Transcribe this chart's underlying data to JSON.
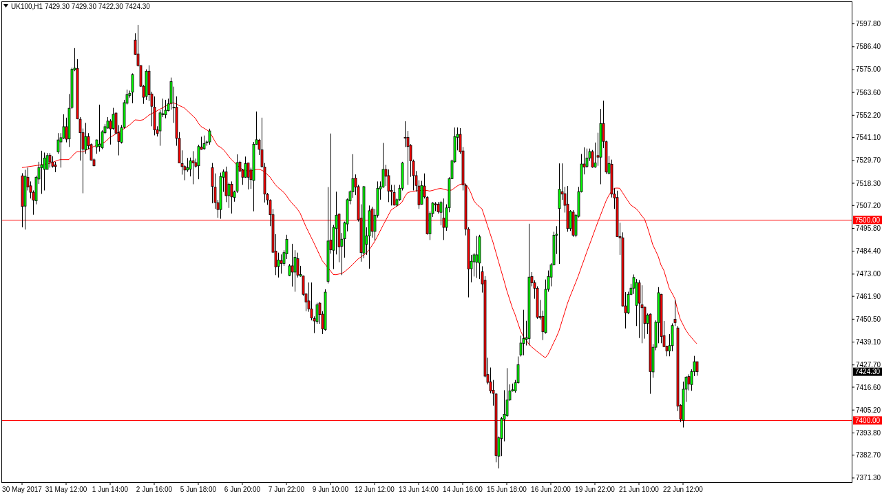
{
  "chart_data": {
    "type": "candlestick",
    "title": "UK100,H1  7429.30 7429.30 7422.30 7424.30",
    "categories": [
      "30 May 2017",
      null,
      null,
      null,
      null,
      null,
      null,
      null,
      null,
      null,
      null,
      null,
      null,
      null,
      null,
      null,
      "31 May 12:00",
      null,
      null,
      null,
      null,
      null,
      null,
      null,
      null,
      null,
      null,
      null,
      null,
      null,
      null,
      null,
      "1 Jun 14:00",
      null,
      null,
      null,
      null,
      null,
      null,
      null,
      null,
      null,
      null,
      null,
      null,
      null,
      null,
      null,
      "2 Jun 16:00",
      null,
      null,
      null,
      null,
      null,
      null,
      null,
      null,
      null,
      null,
      null,
      null,
      null,
      null,
      null,
      "5 Jun 18:00",
      null,
      null,
      null,
      null,
      null,
      null,
      null,
      null,
      null,
      null,
      null,
      null,
      null,
      null,
      null,
      "6 Jun 20:00",
      null,
      null,
      null,
      null,
      null,
      null,
      null,
      null,
      null,
      null,
      null,
      null,
      null,
      null,
      null,
      "7 Jun 22:00",
      null,
      null,
      null,
      null,
      null,
      null,
      null,
      null,
      null,
      null,
      null,
      null,
      null,
      null,
      null,
      "9 Jun 10:00",
      null,
      null,
      null,
      null,
      null,
      null,
      null,
      null,
      null,
      null,
      null,
      null,
      null,
      null,
      null,
      "12 Jun 12:00",
      null,
      null,
      null,
      null,
      null,
      null,
      null,
      null,
      null,
      null,
      null,
      null,
      null,
      null,
      null,
      "13 Jun 14:00",
      null,
      null,
      null,
      null,
      null,
      null,
      null,
      null,
      null,
      null,
      null,
      null,
      null,
      null,
      null,
      "14 Jun 16:00",
      null,
      null,
      null,
      null,
      null,
      null,
      null,
      null,
      null,
      null,
      null,
      null,
      null,
      null,
      null,
      "15 Jun 18:00",
      null,
      null,
      null,
      null,
      null,
      null,
      null,
      null,
      null,
      null,
      null,
      null,
      null,
      null,
      null,
      "16 Jun 20:00",
      null,
      null,
      null,
      null,
      null,
      null,
      null,
      null,
      null,
      null,
      null,
      null,
      null,
      null,
      null,
      "19 Jun 22:00",
      null,
      null,
      null,
      null,
      null,
      null,
      null,
      null,
      null,
      null,
      null,
      null,
      null,
      null,
      null,
      "21 Jun 10:00",
      null,
      null,
      null,
      null,
      null,
      null,
      null,
      null,
      null,
      null,
      null,
      null,
      null,
      null,
      null,
      "22 Jun 12:00",
      null,
      null,
      null,
      null,
      null
    ],
    "ohlc": [
      [
        7522.0,
        7523.3,
        7496.3,
        7506.7
      ],
      [
        7506.9,
        7525.0,
        7495.2,
        7521.8
      ],
      [
        7521.3,
        7526.1,
        7514.7,
        7516.5
      ],
      [
        7517.0,
        7519.2,
        7510.7,
        7513.8
      ],
      [
        7513.8,
        7514.7,
        7502.6,
        7509.9
      ],
      [
        7509.5,
        7522.1,
        7507.8,
        7521.3
      ],
      [
        7520.4,
        7529.0,
        7517.9,
        7526.1
      ],
      [
        7526.1,
        7534.5,
        7513.0,
        7527.5
      ],
      [
        7525.2,
        7533.6,
        7514.7,
        7530.9
      ],
      [
        7525.2,
        7533.4,
        7525.2,
        7532.1
      ],
      [
        7532.3,
        7533.4,
        7526.1,
        7528.9
      ],
      [
        7528.9,
        7531.8,
        7526.1,
        7526.8
      ],
      [
        7527.5,
        7529.0,
        7523.8,
        7526.6
      ],
      [
        7533.9,
        7543.3,
        7533.0,
        7539.9
      ],
      [
        7538.9,
        7543.3,
        7526.1,
        7541.0
      ],
      [
        7540.8,
        7552.7,
        7540.4,
        7546.5
      ],
      [
        7546.5,
        7551.0,
        7538.7,
        7540.3
      ],
      [
        7540.4,
        7562.8,
        7536.4,
        7555.7
      ],
      [
        7556.1,
        7575.9,
        7555.3,
        7575.1
      ],
      [
        7574.8,
        7585.7,
        7574.2,
        7575.7
      ],
      [
        7575.6,
        7580.2,
        7550.2,
        7550.4
      ],
      [
        7550.2,
        7551.3,
        7529.6,
        7543.5
      ],
      [
        7543.5,
        7545.6,
        7513.3,
        7535.3
      ],
      [
        7535.0,
        7548.4,
        7533.0,
        7541.6
      ],
      [
        7541.6,
        7543.3,
        7535.3,
        7537.0
      ],
      [
        7537.6,
        7538.1,
        7529.6,
        7529.8
      ],
      [
        7530.0,
        7530.7,
        7526.7,
        7527.0
      ],
      [
        7536.4,
        7540.1,
        7533.0,
        7539.9
      ],
      [
        7536.7,
        7557.5,
        7534.1,
        7537.8
      ],
      [
        7536.0,
        7544.7,
        7535.3,
        7544.0
      ],
      [
        7543.5,
        7547.9,
        7542.7,
        7546.5
      ],
      [
        7545.8,
        7551.3,
        7545.6,
        7549.3
      ],
      [
        7549.3,
        7550.2,
        7537.6,
        7545.4
      ],
      [
        7545.6,
        7555.9,
        7545.0,
        7552.7
      ],
      [
        7553.3,
        7553.6,
        7542.7,
        7543.3
      ],
      [
        7543.5,
        7547.3,
        7532.2,
        7539.1
      ],
      [
        7538.7,
        7547.3,
        7538.1,
        7546.0
      ],
      [
        7546.2,
        7559.9,
        7545.6,
        7558.5
      ],
      [
        7558.2,
        7565.0,
        7557.6,
        7562.5
      ],
      [
        7562.1,
        7564.5,
        7561.0,
        7563.2
      ],
      [
        7563.7,
        7573.1,
        7558.2,
        7572.5
      ],
      [
        7589.7,
        7593.1,
        7582.2,
        7582.5
      ],
      [
        7582.8,
        7597.3,
        7576.5,
        7577.0
      ],
      [
        7577.0,
        7577.1,
        7566.4,
        7566.7
      ],
      [
        7566.7,
        7567.3,
        7557.9,
        7561.2
      ],
      [
        7561.6,
        7575.1,
        7559.9,
        7574.2
      ],
      [
        7574.2,
        7577.1,
        7559.3,
        7562.5
      ],
      [
        7562.8,
        7563.9,
        7546.7,
        7556.7
      ],
      [
        7556.3,
        7561.6,
        7542.2,
        7544.9
      ],
      [
        7544.9,
        7546.7,
        7541.6,
        7543.1
      ],
      [
        7544.4,
        7554.7,
        7537.0,
        7553.4
      ],
      [
        7552.5,
        7560.5,
        7551.3,
        7553.0
      ],
      [
        7552.5,
        7559.9,
        7550.7,
        7554.7
      ],
      [
        7554.5,
        7560.5,
        7554.2,
        7557.9
      ],
      [
        7558.2,
        7571.0,
        7555.0,
        7569.0
      ],
      [
        7556.2,
        7566.5,
        7548.4,
        7556.2
      ],
      [
        7556.2,
        7561.6,
        7537.0,
        7540.7
      ],
      [
        7540.7,
        7543.8,
        7528.4,
        7528.4
      ],
      [
        7528.1,
        7534.7,
        7522.6,
        7526.6
      ],
      [
        7526.6,
        7527.2,
        7519.8,
        7524.9
      ],
      [
        7524.9,
        7530.9,
        7524.0,
        7526.1
      ],
      [
        7525.3,
        7531.1,
        7521.7,
        7529.5
      ],
      [
        7529.5,
        7534.3,
        7517.8,
        7528.4
      ],
      [
        7528.6,
        7530.6,
        7526.1,
        7526.8
      ],
      [
        7527.0,
        7537.5,
        7520.3,
        7536.6
      ],
      [
        7536.4,
        7541.5,
        7535.0,
        7535.2
      ],
      [
        7535.5,
        7542.1,
        7535.0,
        7538.1
      ],
      [
        7538.5,
        7539.6,
        7537.0,
        7538.9
      ],
      [
        7538.9,
        7545.5,
        7537.5,
        7544.4
      ],
      [
        7526.1,
        7528.4,
        7508.3,
        7516.7
      ],
      [
        7516.3,
        7523.2,
        7505.5,
        7508.7
      ],
      [
        7508.6,
        7510.0,
        7501.1,
        7505.2
      ],
      [
        7505.2,
        7523.6,
        7500.6,
        7521.7
      ],
      [
        7521.3,
        7525.2,
        7514.0,
        7524.0
      ],
      [
        7524.0,
        7526.6,
        7508.9,
        7512.1
      ],
      [
        7512.1,
        7518.6,
        7506.0,
        7517.8
      ],
      [
        7517.8,
        7519.2,
        7503.2,
        7511.5
      ],
      [
        7511.2,
        7514.6,
        7509.1,
        7514.0
      ],
      [
        7514.4,
        7532.7,
        7513.5,
        7528.6
      ],
      [
        7528.8,
        7529.5,
        7523.8,
        7524.4
      ],
      [
        7524.9,
        7525.5,
        7517.5,
        7521.3
      ],
      [
        7521.3,
        7531.6,
        7521.0,
        7528.1
      ],
      [
        7528.4,
        7528.6,
        7515.2,
        7521.3
      ],
      [
        7524.9,
        7526.1,
        7515.5,
        7520.1
      ],
      [
        7519.7,
        7538.9,
        7504.3,
        7537.7
      ],
      [
        7537.7,
        7554.1,
        7537.5,
        7540.0
      ],
      [
        7539.8,
        7540.4,
        7532.4,
        7535.2
      ],
      [
        7535.0,
        7551.0,
        7526.1,
        7526.6
      ],
      [
        7526.4,
        7528.4,
        7508.7,
        7512.9
      ],
      [
        7512.8,
        7513.5,
        7507.5,
        7510.0
      ],
      [
        7509.8,
        7510.3,
        7496.9,
        7502.6
      ],
      [
        7502.6,
        7505.5,
        7483.7,
        7483.9
      ],
      [
        7484.5,
        7492.9,
        7472.5,
        7476.6
      ],
      [
        7476.8,
        7483.7,
        7471.3,
        7480.0
      ],
      [
        7479.8,
        7482.8,
        7473.2,
        7478.3
      ],
      [
        7478.3,
        7484.9,
        7477.1,
        7483.7
      ],
      [
        7483.1,
        7492.6,
        7480.5,
        7490.3
      ],
      [
        7472.3,
        7478.0,
        7472.0,
        7477.1
      ],
      [
        7477.1,
        7488.1,
        7466.8,
        7474.0
      ],
      [
        7474.0,
        7484.9,
        7464.2,
        7481.4
      ],
      [
        7480.7,
        7483.7,
        7471.3,
        7472.5
      ],
      [
        7472.0,
        7477.1,
        7471.7,
        7472.8
      ],
      [
        7472.0,
        7472.3,
        7462.2,
        7462.9
      ],
      [
        7463.1,
        7463.3,
        7454.5,
        7459.1
      ],
      [
        7459.6,
        7468.8,
        7454.2,
        7455.6
      ],
      [
        7455.6,
        7468.8,
        7449.9,
        7451.1
      ],
      [
        7450.8,
        7451.9,
        7443.6,
        7449.6
      ],
      [
        7449.3,
        7458.7,
        7448.2,
        7457.7
      ],
      [
        7458.5,
        7459.1,
        7448.2,
        7452.8
      ],
      [
        7453.0,
        7454.5,
        7443.1,
        7445.7
      ],
      [
        7445.3,
        7465.4,
        7444.8,
        7464.0
      ],
      [
        7469.4,
        7516.4,
        7468.3,
        7489.5
      ],
      [
        7490.0,
        7543.1,
        7483.2,
        7485.1
      ],
      [
        7484.9,
        7497.5,
        7475.5,
        7496.3
      ],
      [
        7495.7,
        7514.1,
        7482.8,
        7502.4
      ],
      [
        7502.9,
        7503.2,
        7478.9,
        7486.6
      ],
      [
        7486.9,
        7493.5,
        7472.5,
        7490.4
      ],
      [
        7490.6,
        7499.2,
        7481.2,
        7498.6
      ],
      [
        7498.0,
        7510.7,
        7494.3,
        7510.1
      ],
      [
        7509.5,
        7514.7,
        7507.8,
        7514.1
      ],
      [
        7514.0,
        7532.8,
        7511.0,
        7520.6
      ],
      [
        7520.9,
        7522.7,
        7512.4,
        7516.4
      ],
      [
        7516.6,
        7517.5,
        7499.2,
        7500.1
      ],
      [
        7500.9,
        7507.8,
        7479.2,
        7483.7
      ],
      [
        7483.5,
        7516.9,
        7480.9,
        7516.6
      ],
      [
        7487.8,
        7496.3,
        7482.6,
        7492.0
      ],
      [
        7492.0,
        7507.2,
        7475.7,
        7504.6
      ],
      [
        7505.5,
        7506.6,
        7491.2,
        7494.3
      ],
      [
        7494.3,
        7505.5,
        7489.7,
        7502.4
      ],
      [
        7502.3,
        7519.2,
        7501.2,
        7515.8
      ],
      [
        7515.5,
        7519.2,
        7510.1,
        7516.6
      ],
      [
        7516.4,
        7538.4,
        7516.0,
        7525.2
      ],
      [
        7525.2,
        7527.5,
        7516.9,
        7521.8
      ],
      [
        7522.1,
        7525.2,
        7508.9,
        7514.4
      ],
      [
        7514.7,
        7517.5,
        7507.2,
        7514.1
      ],
      [
        7513.7,
        7517.5,
        7507.2,
        7507.4
      ],
      [
        7507.4,
        7510.7,
        7506.6,
        7510.1
      ],
      [
        7510.1,
        7517.5,
        7509.5,
        7515.8
      ],
      [
        7515.8,
        7529.0,
        7514.7,
        7528.4
      ],
      [
        7541.2,
        7549.2,
        7536.4,
        7540.8
      ],
      [
        7541.2,
        7544.4,
        7517.5,
        7536.6
      ],
      [
        7537.2,
        7537.8,
        7521.5,
        7529.5
      ],
      [
        7529.3,
        7530.1,
        7514.7,
        7522.1
      ],
      [
        7522.1,
        7524.4,
        7514.1,
        7517.2
      ],
      [
        7516.9,
        7519.8,
        7505.5,
        7507.6
      ],
      [
        7507.8,
        7519.5,
        7507.6,
        7517.2
      ],
      [
        7516.9,
        7523.2,
        7510.7,
        7511.5
      ],
      [
        7511.2,
        7511.8,
        7492.7,
        7493.1
      ],
      [
        7493.1,
        7504.3,
        7490.0,
        7503.2
      ],
      [
        7503.2,
        7508.9,
        7501.5,
        7508.4
      ],
      [
        7508.0,
        7508.9,
        7504.4,
        7507.6
      ],
      [
        7507.8,
        7508.9,
        7503.2,
        7504.1
      ],
      [
        7503.8,
        7509.5,
        7497.3,
        7508.7
      ],
      [
        7500.9,
        7510.7,
        7490.0,
        7496.3
      ],
      [
        7496.3,
        7507.8,
        7494.6,
        7506.0
      ],
      [
        7506.1,
        7521.3,
        7503.8,
        7520.6
      ],
      [
        7520.6,
        7530.1,
        7520.4,
        7529.5
      ],
      [
        7529.0,
        7546.1,
        7528.4,
        7541.6
      ],
      [
        7541.2,
        7546.1,
        7534.7,
        7542.7
      ],
      [
        7542.7,
        7545.8,
        7533.0,
        7533.9
      ],
      [
        7534.4,
        7536.4,
        7514.7,
        7517.5
      ],
      [
        7517.2,
        7518.1,
        7492.3,
        7495.4
      ],
      [
        7495.4,
        7496.3,
        7461.4,
        7475.5
      ],
      [
        7475.7,
        7482.6,
        7468.9,
        7479.4
      ],
      [
        7479.1,
        7483.4,
        7471.8,
        7482.6
      ],
      [
        7478.9,
        7492.0,
        7471.1,
        7482.6
      ],
      [
        7478.5,
        7492.6,
        7470.5,
        7491.6
      ],
      [
        7474.2,
        7476.9,
        7463.8,
        7468.1
      ],
      [
        7469.9,
        7472.0,
        7421.5,
        7422.1
      ],
      [
        7422.9,
        7431.3,
        7418.0,
        7419.0
      ],
      [
        7419.3,
        7426.4,
        7413.5,
        7414.7
      ],
      [
        7415.1,
        7420.2,
        7407.4,
        7413.5
      ],
      [
        7413.2,
        7413.5,
        7379.1,
        7382.5
      ],
      [
        7382.2,
        7392.0,
        7376.1,
        7391.4
      ],
      [
        7391.0,
        7401.8,
        7382.2,
        7400.9
      ],
      [
        7400.6,
        7415.1,
        7389.6,
        7403.1
      ],
      [
        7402.4,
        7426.1,
        7401.8,
        7410.2
      ],
      [
        7410.2,
        7418.0,
        7409.8,
        7414.7
      ],
      [
        7414.7,
        7418.4,
        7414.4,
        7415.3
      ],
      [
        7414.7,
        7420.2,
        7413.9,
        7418.8
      ],
      [
        7418.8,
        7431.9,
        7418.4,
        7427.8
      ],
      [
        7432.7,
        7442.3,
        7431.9,
        7438.6
      ],
      [
        7438.4,
        7455.2,
        7432.5,
        7440.8
      ],
      [
        7440.5,
        7449.7,
        7437.4,
        7441.3
      ],
      [
        7440.8,
        7498.1,
        7437.4,
        7471.5
      ],
      [
        7471.8,
        7474.0,
        7466.9,
        7468.7
      ],
      [
        7468.7,
        7469.9,
        7460.7,
        7465.9
      ],
      [
        7465.9,
        7466.9,
        7450.7,
        7451.5
      ],
      [
        7451.9,
        7460.1,
        7450.3,
        7451.2
      ],
      [
        7451.9,
        7454.8,
        7440.1,
        7444.2
      ],
      [
        7443.8,
        7470.3,
        7443.3,
        7465.4
      ],
      [
        7465.4,
        7474.8,
        7464.2,
        7471.8
      ],
      [
        7471.5,
        7478.5,
        7466.9,
        7477.6
      ],
      [
        7477.6,
        7494.1,
        7477.3,
        7492.4
      ],
      [
        7492.4,
        7496.9,
        7483.0,
        7492.9
      ],
      [
        7505.7,
        7528.2,
        7478.1,
        7515.3
      ],
      [
        7514.1,
        7528.2,
        7510.0,
        7512.9
      ],
      [
        7513.1,
        7516.5,
        7503.7,
        7507.3
      ],
      [
        7507.9,
        7516.9,
        7494.1,
        7495.7
      ],
      [
        7495.7,
        7504.9,
        7494.5,
        7504.3
      ],
      [
        7503.9,
        7504.9,
        7491.6,
        7492.4
      ],
      [
        7492.4,
        7503.0,
        7491.4,
        7502.4
      ],
      [
        7501.8,
        7516.5,
        7501.2,
        7514.1
      ],
      [
        7514.1,
        7532.9,
        7513.7,
        7527.9
      ],
      [
        7527.9,
        7536.2,
        7522.7,
        7526.4
      ],
      [
        7526.7,
        7535.6,
        7526.0,
        7530.9
      ],
      [
        7530.9,
        7535.6,
        7529.4,
        7534.1
      ],
      [
        7534.1,
        7534.9,
        7526.0,
        7526.4
      ],
      [
        7526.4,
        7538.6,
        7526.0,
        7528.4
      ],
      [
        7532.1,
        7543.5,
        7527.0,
        7531.3
      ],
      [
        7531.3,
        7555.4,
        7517.8,
        7548.1
      ],
      [
        7548.1,
        7559.5,
        7535.8,
        7539.2
      ],
      [
        7539.0,
        7539.5,
        7523.0,
        7523.9
      ],
      [
        7523.3,
        7531.9,
        7522.7,
        7528.2
      ],
      [
        7527.8,
        7530.1,
        7511.2,
        7512.9
      ],
      [
        7512.9,
        7515.8,
        7505.5,
        7511.0
      ],
      [
        7511.2,
        7514.6,
        7491.7,
        7491.7
      ],
      [
        7491.7,
        7498.6,
        7482.6,
        7491.1
      ],
      [
        7491.1,
        7493.8,
        7456.8,
        7457.1
      ],
      [
        7457.1,
        7464.0,
        7445.9,
        7453.7
      ],
      [
        7453.7,
        7464.2,
        7453.0,
        7462.9
      ],
      [
        7462.9,
        7468.2,
        7462.5,
        7466.0
      ],
      [
        7466.0,
        7472.8,
        7463.1,
        7471.3
      ],
      [
        7457.4,
        7470.5,
        7447.1,
        7468.8
      ],
      [
        7468.6,
        7470.0,
        7441.1,
        7458.5
      ],
      [
        7457.7,
        7467.4,
        7438.5,
        7456.2
      ],
      [
        7456.5,
        7456.8,
        7440.8,
        7448.4
      ],
      [
        7448.4,
        7453.4,
        7443.1,
        7452.6
      ],
      [
        7453.0,
        7453.4,
        7413.3,
        7424.4
      ],
      [
        7424.2,
        7438.1,
        7421.3,
        7436.5
      ],
      [
        7436.5,
        7449.9,
        7435.0,
        7449.1
      ],
      [
        7448.8,
        7466.5,
        7438.5,
        7463.7
      ],
      [
        7462.9,
        7463.1,
        7438.5,
        7441.9
      ],
      [
        7442.3,
        7449.6,
        7436.8,
        7436.8
      ],
      [
        7437.0,
        7437.3,
        7432.0,
        7434.7
      ],
      [
        7434.7,
        7443.1,
        7432.0,
        7437.3
      ],
      [
        7437.3,
        7448.4,
        7434.5,
        7447.3
      ],
      [
        7450.5,
        7460.2,
        7447.1,
        7448.8
      ],
      [
        7446.1,
        7447.1,
        7404.7,
        7407.2
      ],
      [
        7407.6,
        7408.1,
        7399.2,
        7400.7
      ],
      [
        7400.1,
        7419.4,
        7396.5,
        7415.6
      ],
      [
        7415.6,
        7422.1,
        7409.3,
        7421.6
      ],
      [
        7421.9,
        7423.0,
        7415.0,
        7418.2
      ],
      [
        7417.9,
        7425.5,
        7414.8,
        7424.4
      ],
      [
        7424.4,
        7432.2,
        7422.1,
        7429.3
      ],
      [
        7429.3,
        7429.3,
        7422.3,
        7424.3
      ]
    ],
    "series": [
      {
        "type": "line",
        "color": "#ff0000",
        "values": [
          7526.1,
          7526.3,
          7526.5,
          7526.7,
          7526.9,
          7527.1,
          7527.3,
          7527.5,
          7527.7,
          7528.0,
          7528.2,
          7528.6,
          7529.2,
          7529.8,
          7530.1,
          7530.1,
          7530.1,
          7530.1,
          7531.5,
          7533.0,
          7534.1,
          7534.0,
          7533.9,
          7534.6,
          7535.3,
          7535.9,
          7536.6,
          7537.1,
          7537.6,
          7538.1,
          7538.8,
          7539.9,
          7541.3,
          7542.0,
          7542.9,
          7543.8,
          7544.7,
          7545.5,
          7546.4,
          7547.3,
          7548.6,
          7549.9,
          7549.8,
          7549.7,
          7550.0,
          7551.1,
          7552.2,
          7553.0,
          7553.7,
          7554.4,
          7555.2,
          7555.9,
          7556.7,
          7557.4,
          7558.0,
          7558.4,
          7557.8,
          7557.1,
          7556.5,
          7555.8,
          7554.5,
          7553.2,
          7551.9,
          7550.6,
          7548.3,
          7546.6,
          7545.8,
          7545.0,
          7544.0,
          7541.8,
          7539.3,
          7537.1,
          7536.3,
          7535.2,
          7533.6,
          7531.8,
          7530.2,
          7528.8,
          7527.5,
          7526.3,
          7525.2,
          7524.7,
          7524.5,
          7524.4,
          7524.8,
          7525.2,
          7525.3,
          7524.8,
          7524.1,
          7522.7,
          7521.4,
          7519.5,
          7517.5,
          7516.1,
          7515.0,
          7513.8,
          7512.1,
          7510.1,
          7508.4,
          7506.9,
          7505.4,
          7503.3,
          7500.1,
          7496.9,
          7494.1,
          7491.3,
          7488.5,
          7485.6,
          7482.7,
          7479.7,
          7478.0,
          7476.3,
          7474.6,
          7472.8,
          7472.7,
          7473.0,
          7473.3,
          7474.0,
          7475.2,
          7476.4,
          7477.7,
          7479.1,
          7480.5,
          7481.5,
          7482.5,
          7483.4,
          7485.1,
          7487.1,
          7489.2,
          7491.7,
          7494.4,
          7497.1,
          7499.7,
          7502.3,
          7504.9,
          7505.9,
          7506.8,
          7507.7,
          7509.0,
          7511.7,
          7513.6,
          7514.0,
          7514.3,
          7514.5,
          7514.6,
          7514.7,
          7514.8,
          7514.7,
          7514.4,
          7514.7,
          7515.1,
          7515.5,
          7515.7,
          7515.4,
          7515.0,
          7514.7,
          7514.9,
          7515.9,
          7516.9,
          7517.7,
          7518.0,
          7517.9,
          7516.2,
          7513.4,
          7509.7,
          7507.9,
          7506.7,
          7505.5,
          7501.4,
          7497.2,
          7493.0,
          7488.9,
          7484.1,
          7479.3,
          7474.5,
          7469.8,
          7464.8,
          7460.6,
          7456.3,
          7452.9,
          7448.8,
          7444.7,
          7442.0,
          7440.2,
          7438.2,
          7436.7,
          7435.6,
          7434.4,
          7433.4,
          7432.3,
          7431.3,
          7433.0,
          7435.8,
          7438.7,
          7441.5,
          7444.8,
          7449.3,
          7453.7,
          7458.2,
          7461.9,
          7465.3,
          7468.7,
          7472.2,
          7476.1,
          7479.9,
          7483.8,
          7487.5,
          7491.2,
          7495.0,
          7498.7,
          7502.2,
          7505.8,
          7509.3,
          7512.1,
          7514.2,
          7515.8,
          7515.9,
          7515.8,
          7513.7,
          7511.6,
          7509.5,
          7507.5,
          7506.5,
          7505.6,
          7504.0,
          7502.1,
          7500.5,
          7496.7,
          7492.3,
          7487.7,
          7484.8,
          7481.8,
          7477.5,
          7475.0,
          7470.5,
          7465.9,
          7463.5,
          7460.9,
          7455.2,
          7450.5,
          7447.8,
          7445.1,
          7443.1,
          7441.4,
          7439.8,
          7438.3
        ]
      }
    ],
    "ylim": [
      7369.2,
      7609.0
    ],
    "yticks": [
      {
        "value": 7371.3,
        "label": "7371.30"
      },
      {
        "value": 7382.7,
        "label": "7382.70"
      },
      {
        "value": 7393.8,
        "label": "7393.80"
      },
      {
        "value": 7405.2,
        "label": "7405.20"
      },
      {
        "value": 7416.6,
        "label": "7416.60"
      },
      {
        "value": 7427.7,
        "label": "7427.70"
      },
      {
        "value": 7439.1,
        "label": "7439.10"
      },
      {
        "value": 7450.5,
        "label": "7450.50"
      },
      {
        "value": 7461.9,
        "label": "7461.90"
      },
      {
        "value": 7473.0,
        "label": "7473.00"
      },
      {
        "value": 7484.4,
        "label": "7484.40"
      },
      {
        "value": 7495.8,
        "label": "7495.80"
      },
      {
        "value": 7507.2,
        "label": "7507.20"
      },
      {
        "value": 7518.3,
        "label": "7518.30"
      },
      {
        "value": 7529.7,
        "label": "7529.70"
      },
      {
        "value": 7541.1,
        "label": "7541.10"
      },
      {
        "value": 7552.2,
        "label": "7552.20"
      },
      {
        "value": 7563.6,
        "label": "7563.60"
      },
      {
        "value": 7575.0,
        "label": "7575.00"
      },
      {
        "value": 7586.4,
        "label": "7586.40"
      },
      {
        "value": 7597.8,
        "label": "7597.80"
      }
    ],
    "ref_lines": [
      {
        "axis": "y",
        "value": 7500,
        "label": "7500.00",
        "color": "#ff0000"
      },
      {
        "axis": "y",
        "value": 7400,
        "label": "7400.00",
        "color": "#ff0000"
      }
    ],
    "annotations": [
      "7424.30"
    ]
  }
}
